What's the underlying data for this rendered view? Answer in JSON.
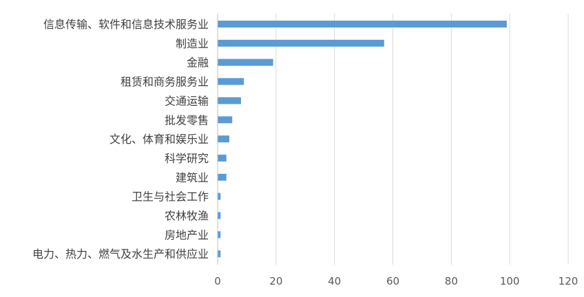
{
  "chart_data": {
    "type": "bar",
    "orientation": "horizontal",
    "title": "",
    "xlabel": "",
    "ylabel": "",
    "categories": [
      "信息传输、软件和信息技术服务业",
      "制造业",
      "金融",
      "租赁和商务服务业",
      "交通运输",
      "批发零售",
      "文化、体育和娱乐业",
      "科学研究",
      "建筑业",
      "卫生与社会工作",
      "农林牧渔",
      "房地产业",
      "电力、热力、燃气及水生产和供应业"
    ],
    "values": [
      99,
      57,
      19,
      9,
      8,
      5,
      4,
      3,
      3,
      1,
      1,
      1,
      1
    ],
    "xlim": [
      0,
      120
    ],
    "xticks": [
      0,
      20,
      40,
      60,
      80,
      100,
      120
    ],
    "grid": "vertical",
    "legend": "none",
    "colors": {
      "bar": "#5B9BD5",
      "grid": "#D9D9D9",
      "axis": "#BFBFBF",
      "text": "#404040",
      "tick_text": "#595959"
    }
  }
}
